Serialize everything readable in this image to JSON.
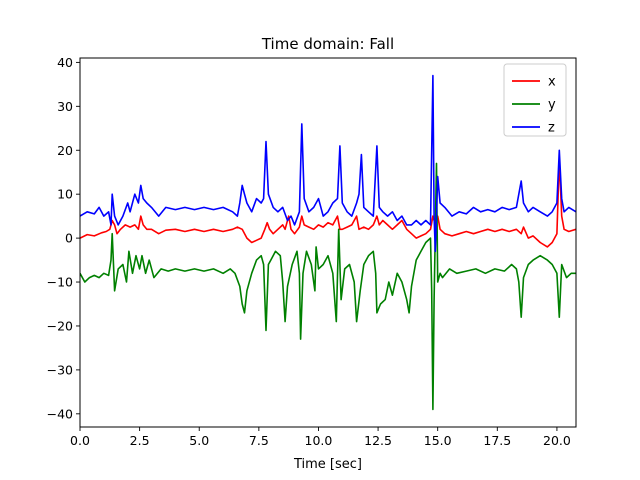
{
  "chart_data": {
    "type": "line",
    "title": "Time domain: Fall",
    "xlabel": "Time [sec]",
    "ylabel": "",
    "xlim": [
      0,
      20.8
    ],
    "ylim": [
      -43,
      41
    ],
    "xticks": [
      0,
      2.5,
      5,
      7.5,
      10,
      12.5,
      15,
      17.5,
      20
    ],
    "xtick_labels": [
      "0.0",
      "2.5",
      "5.0",
      "7.5",
      "10.0",
      "12.5",
      "15.0",
      "17.5",
      "20.0"
    ],
    "yticks": [
      -40,
      -30,
      -20,
      -10,
      0,
      10,
      20,
      30,
      40
    ],
    "ytick_labels": [
      "−40",
      "−30",
      "−20",
      "−10",
      "0",
      "10",
      "20",
      "30",
      "40"
    ],
    "grid": false,
    "legend_position": "top-right",
    "series": [
      {
        "name": "x",
        "color": "#ff0000",
        "points": [
          [
            0,
            0
          ],
          [
            0.3,
            0.8
          ],
          [
            0.6,
            0.5
          ],
          [
            0.9,
            1.2
          ],
          [
            1.1,
            1.5
          ],
          [
            1.25,
            2
          ],
          [
            1.35,
            4
          ],
          [
            1.45,
            3
          ],
          [
            1.55,
            1
          ],
          [
            1.7,
            2
          ],
          [
            1.9,
            3
          ],
          [
            2.1,
            2.5
          ],
          [
            2.3,
            3
          ],
          [
            2.45,
            2
          ],
          [
            2.55,
            5
          ],
          [
            2.65,
            3
          ],
          [
            2.8,
            2
          ],
          [
            3.0,
            2
          ],
          [
            3.3,
            1
          ],
          [
            3.6,
            1.8
          ],
          [
            4.0,
            2
          ],
          [
            4.4,
            1.5
          ],
          [
            4.8,
            2
          ],
          [
            5.2,
            1.5
          ],
          [
            5.6,
            2
          ],
          [
            6.0,
            1.5
          ],
          [
            6.4,
            2
          ],
          [
            6.6,
            2.5
          ],
          [
            6.8,
            2
          ],
          [
            7.0,
            0
          ],
          [
            7.2,
            -1
          ],
          [
            7.4,
            -0.5
          ],
          [
            7.6,
            0
          ],
          [
            7.75,
            2
          ],
          [
            7.85,
            3.5
          ],
          [
            7.95,
            2
          ],
          [
            8.1,
            1
          ],
          [
            8.3,
            2
          ],
          [
            8.5,
            3
          ],
          [
            8.6,
            2
          ],
          [
            8.75,
            5
          ],
          [
            8.85,
            2
          ],
          [
            9.0,
            1
          ],
          [
            9.2,
            2.5
          ],
          [
            9.3,
            5
          ],
          [
            9.4,
            3
          ],
          [
            9.6,
            2.5
          ],
          [
            9.8,
            2
          ],
          [
            10.0,
            3
          ],
          [
            10.2,
            2.5
          ],
          [
            10.4,
            3.5
          ],
          [
            10.6,
            3
          ],
          [
            10.8,
            5
          ],
          [
            10.9,
            2
          ],
          [
            11.0,
            2
          ],
          [
            11.2,
            2.5
          ],
          [
            11.4,
            3
          ],
          [
            11.6,
            5
          ],
          [
            11.7,
            2
          ],
          [
            11.9,
            2.5
          ],
          [
            12.1,
            2
          ],
          [
            12.3,
            3
          ],
          [
            12.45,
            5
          ],
          [
            12.55,
            3
          ],
          [
            12.7,
            4
          ],
          [
            12.9,
            3
          ],
          [
            13.1,
            2
          ],
          [
            13.3,
            3
          ],
          [
            13.5,
            4
          ],
          [
            13.7,
            2
          ],
          [
            13.9,
            1
          ],
          [
            14.1,
            0
          ],
          [
            14.3,
            0.5
          ],
          [
            14.5,
            1
          ],
          [
            14.7,
            2
          ],
          [
            14.8,
            5
          ],
          [
            14.9,
            3
          ],
          [
            15.0,
            5
          ],
          [
            15.1,
            2
          ],
          [
            15.3,
            1
          ],
          [
            15.6,
            0.5
          ],
          [
            15.9,
            1
          ],
          [
            16.2,
            1.5
          ],
          [
            16.5,
            1
          ],
          [
            16.8,
            1.5
          ],
          [
            17.1,
            2
          ],
          [
            17.4,
            1.5
          ],
          [
            17.7,
            2
          ],
          [
            18.0,
            1.5
          ],
          [
            18.3,
            2
          ],
          [
            18.5,
            1
          ],
          [
            18.6,
            2.5
          ],
          [
            18.8,
            0
          ],
          [
            19.0,
            0.5
          ],
          [
            19.3,
            -1
          ],
          [
            19.6,
            -2
          ],
          [
            19.8,
            -1
          ],
          [
            20.0,
            1
          ],
          [
            20.1,
            18
          ],
          [
            20.2,
            5
          ],
          [
            20.3,
            2
          ],
          [
            20.5,
            1.5
          ],
          [
            20.8,
            2
          ]
        ]
      },
      {
        "name": "y",
        "color": "#008000",
        "points": [
          [
            0,
            -8
          ],
          [
            0.2,
            -10
          ],
          [
            0.4,
            -9
          ],
          [
            0.6,
            -8.5
          ],
          [
            0.8,
            -9
          ],
          [
            1.0,
            -8
          ],
          [
            1.2,
            -8.5
          ],
          [
            1.3,
            -5
          ],
          [
            1.35,
            1
          ],
          [
            1.45,
            -12
          ],
          [
            1.6,
            -7
          ],
          [
            1.8,
            -6
          ],
          [
            1.95,
            -10
          ],
          [
            2.05,
            -3
          ],
          [
            2.2,
            -8
          ],
          [
            2.35,
            -4
          ],
          [
            2.5,
            -7
          ],
          [
            2.6,
            -4
          ],
          [
            2.75,
            -8
          ],
          [
            2.9,
            -5
          ],
          [
            3.1,
            -9
          ],
          [
            3.4,
            -7
          ],
          [
            3.7,
            -7.5
          ],
          [
            4.0,
            -7
          ],
          [
            4.4,
            -7.5
          ],
          [
            4.8,
            -7
          ],
          [
            5.2,
            -7.5
          ],
          [
            5.6,
            -7
          ],
          [
            6.0,
            -8
          ],
          [
            6.3,
            -7
          ],
          [
            6.5,
            -8
          ],
          [
            6.7,
            -11
          ],
          [
            6.8,
            -15
          ],
          [
            6.9,
            -17
          ],
          [
            7.0,
            -12
          ],
          [
            7.2,
            -8
          ],
          [
            7.4,
            -5
          ],
          [
            7.6,
            -4
          ],
          [
            7.7,
            -6
          ],
          [
            7.8,
            -21
          ],
          [
            7.9,
            -6
          ],
          [
            8.0,
            -5
          ],
          [
            8.2,
            -3
          ],
          [
            8.4,
            -4
          ],
          [
            8.5,
            -10
          ],
          [
            8.6,
            -19
          ],
          [
            8.7,
            -11
          ],
          [
            8.9,
            -6
          ],
          [
            9.1,
            -3
          ],
          [
            9.2,
            -8
          ],
          [
            9.25,
            -23
          ],
          [
            9.35,
            -8
          ],
          [
            9.5,
            -3
          ],
          [
            9.7,
            -6
          ],
          [
            9.85,
            -12
          ],
          [
            9.9,
            -2
          ],
          [
            10.0,
            -7
          ],
          [
            10.2,
            -6
          ],
          [
            10.4,
            -4
          ],
          [
            10.6,
            -8
          ],
          [
            10.75,
            -19
          ],
          [
            10.85,
            2
          ],
          [
            10.95,
            -14
          ],
          [
            11.1,
            -7
          ],
          [
            11.3,
            -6
          ],
          [
            11.5,
            -10
          ],
          [
            11.6,
            -19
          ],
          [
            11.75,
            -12
          ],
          [
            11.9,
            -6
          ],
          [
            12.1,
            -4
          ],
          [
            12.3,
            -3
          ],
          [
            12.4,
            -8
          ],
          [
            12.45,
            -17
          ],
          [
            12.6,
            -15
          ],
          [
            12.8,
            -14
          ],
          [
            12.95,
            -10
          ],
          [
            13.1,
            -13
          ],
          [
            13.3,
            -8
          ],
          [
            13.5,
            -10
          ],
          [
            13.7,
            -14
          ],
          [
            13.8,
            -17
          ],
          [
            13.9,
            -11
          ],
          [
            14.1,
            -5
          ],
          [
            14.3,
            -3
          ],
          [
            14.5,
            -1
          ],
          [
            14.7,
            0
          ],
          [
            14.75,
            -12
          ],
          [
            14.8,
            -39
          ],
          [
            14.85,
            -14
          ],
          [
            14.95,
            17
          ],
          [
            15.0,
            -10
          ],
          [
            15.1,
            -8
          ],
          [
            15.2,
            -9
          ],
          [
            15.5,
            -7
          ],
          [
            15.8,
            -8
          ],
          [
            16.2,
            -7.5
          ],
          [
            16.6,
            -7
          ],
          [
            17.0,
            -8
          ],
          [
            17.4,
            -7
          ],
          [
            17.8,
            -7.5
          ],
          [
            18.1,
            -6
          ],
          [
            18.3,
            -7
          ],
          [
            18.4,
            -10
          ],
          [
            18.5,
            -18
          ],
          [
            18.6,
            -9
          ],
          [
            18.8,
            -6
          ],
          [
            19.0,
            -5
          ],
          [
            19.3,
            -4
          ],
          [
            19.6,
            -5
          ],
          [
            19.8,
            -6
          ],
          [
            20.0,
            -8
          ],
          [
            20.1,
            -18
          ],
          [
            20.2,
            -6
          ],
          [
            20.4,
            -9
          ],
          [
            20.6,
            -8
          ],
          [
            20.8,
            -8
          ]
        ]
      },
      {
        "name": "z",
        "color": "#0000ff",
        "points": [
          [
            0,
            5
          ],
          [
            0.3,
            6
          ],
          [
            0.6,
            5.5
          ],
          [
            0.8,
            7
          ],
          [
            1.0,
            5
          ],
          [
            1.2,
            6
          ],
          [
            1.3,
            3
          ],
          [
            1.35,
            10
          ],
          [
            1.45,
            5
          ],
          [
            1.6,
            3
          ],
          [
            1.8,
            5
          ],
          [
            2.0,
            8
          ],
          [
            2.1,
            6
          ],
          [
            2.3,
            10
          ],
          [
            2.45,
            8
          ],
          [
            2.55,
            12
          ],
          [
            2.65,
            9
          ],
          [
            2.8,
            8
          ],
          [
            3.0,
            7
          ],
          [
            3.3,
            5
          ],
          [
            3.6,
            7
          ],
          [
            4.0,
            6.5
          ],
          [
            4.4,
            7
          ],
          [
            4.8,
            6.5
          ],
          [
            5.2,
            7
          ],
          [
            5.6,
            6.5
          ],
          [
            6.0,
            7
          ],
          [
            6.4,
            6
          ],
          [
            6.6,
            5
          ],
          [
            6.7,
            8
          ],
          [
            6.8,
            12
          ],
          [
            6.9,
            10
          ],
          [
            7.0,
            8
          ],
          [
            7.2,
            6
          ],
          [
            7.4,
            9
          ],
          [
            7.6,
            8
          ],
          [
            7.7,
            9
          ],
          [
            7.8,
            22
          ],
          [
            7.9,
            10
          ],
          [
            8.1,
            7
          ],
          [
            8.3,
            6
          ],
          [
            8.5,
            7
          ],
          [
            8.7,
            4
          ],
          [
            8.85,
            5
          ],
          [
            9.0,
            3
          ],
          [
            9.2,
            6
          ],
          [
            9.3,
            26
          ],
          [
            9.4,
            9
          ],
          [
            9.6,
            6
          ],
          [
            9.8,
            7
          ],
          [
            10.0,
            9
          ],
          [
            10.2,
            5
          ],
          [
            10.4,
            6
          ],
          [
            10.6,
            8
          ],
          [
            10.8,
            9
          ],
          [
            10.9,
            21
          ],
          [
            11.0,
            8
          ],
          [
            11.2,
            6
          ],
          [
            11.4,
            5
          ],
          [
            11.6,
            8
          ],
          [
            11.7,
            10
          ],
          [
            11.8,
            19
          ],
          [
            11.9,
            7
          ],
          [
            12.1,
            6
          ],
          [
            12.3,
            5
          ],
          [
            12.45,
            21
          ],
          [
            12.55,
            7
          ],
          [
            12.7,
            6
          ],
          [
            12.9,
            5
          ],
          [
            13.1,
            6
          ],
          [
            13.3,
            4
          ],
          [
            13.5,
            5
          ],
          [
            13.7,
            3
          ],
          [
            13.9,
            3
          ],
          [
            14.1,
            4
          ],
          [
            14.3,
            3
          ],
          [
            14.5,
            4
          ],
          [
            14.7,
            3
          ],
          [
            14.8,
            37
          ],
          [
            14.85,
            5
          ],
          [
            14.9,
            -3
          ],
          [
            15.0,
            14
          ],
          [
            15.1,
            8
          ],
          [
            15.3,
            7
          ],
          [
            15.6,
            5
          ],
          [
            15.9,
            6
          ],
          [
            16.2,
            5.5
          ],
          [
            16.5,
            7
          ],
          [
            16.8,
            6
          ],
          [
            17.1,
            6.5
          ],
          [
            17.4,
            6
          ],
          [
            17.7,
            7
          ],
          [
            18.0,
            6.5
          ],
          [
            18.3,
            7
          ],
          [
            18.5,
            13
          ],
          [
            18.6,
            8
          ],
          [
            18.8,
            6
          ],
          [
            19.0,
            7
          ],
          [
            19.3,
            6
          ],
          [
            19.6,
            5
          ],
          [
            19.8,
            6
          ],
          [
            20.0,
            8
          ],
          [
            20.1,
            20
          ],
          [
            20.2,
            9
          ],
          [
            20.3,
            6
          ],
          [
            20.5,
            7
          ],
          [
            20.8,
            6
          ]
        ]
      }
    ]
  }
}
